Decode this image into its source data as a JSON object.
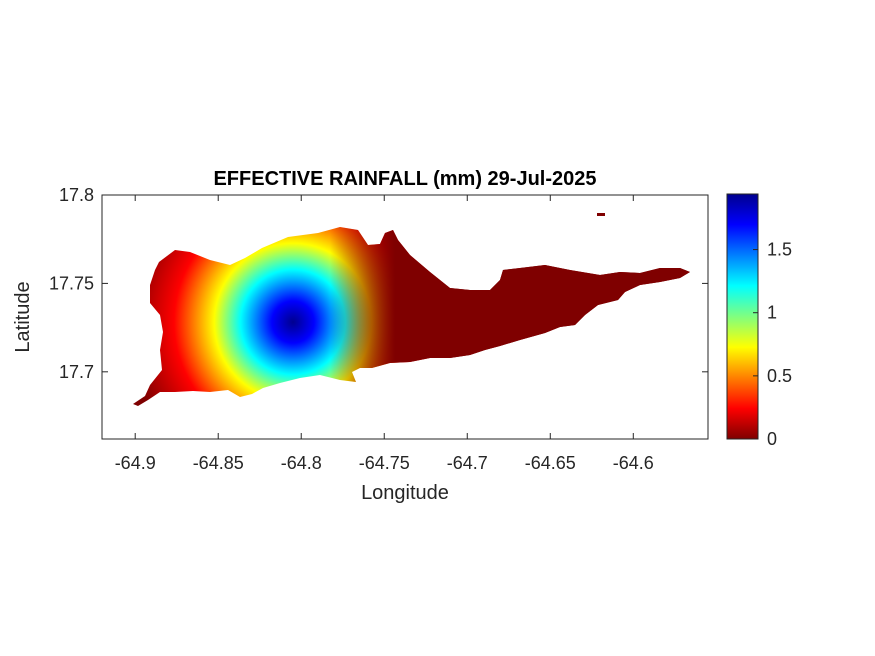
{
  "chart_data": {
    "type": "heatmap",
    "title": "EFFECTIVE RAINFALL (mm) 29-Jul-2025",
    "xlabel": "Longitude",
    "ylabel": "Latitude",
    "xlim": [
      -64.92,
      -64.555
    ],
    "ylim": [
      17.662,
      17.8
    ],
    "x_ticks": [
      -64.9,
      -64.85,
      -64.8,
      -64.75,
      -64.7,
      -64.65,
      -64.6
    ],
    "x_tick_labels": [
      "-64.9",
      "-64.85",
      "-64.8",
      "-64.75",
      "-64.7",
      "-64.65",
      "-64.6"
    ],
    "y_ticks": [
      17.7,
      17.75,
      17.8
    ],
    "y_tick_labels": [
      "17.7",
      "17.75",
      "17.8"
    ],
    "colormap": "jet",
    "colorbar": {
      "range": [
        0,
        1.94
      ],
      "ticks": [
        0,
        0.5,
        1,
        1.5
      ],
      "tick_labels": [
        "0",
        "0.5",
        "1",
        "1.5"
      ]
    },
    "peak": {
      "lon": -64.805,
      "lat": 17.727,
      "value": 1.94
    },
    "zero_east_of_lon": -64.76,
    "grid": false
  }
}
